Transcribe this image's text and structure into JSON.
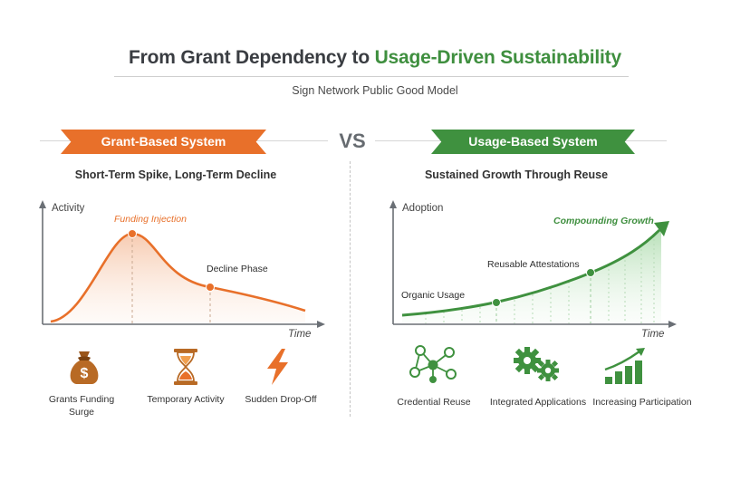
{
  "header": {
    "title_prefix": "From Grant Dependency to ",
    "title_accent": "Usage-Driven Sustainability",
    "subtitle": "Sign Network Public Good Model",
    "vs_label": "VS"
  },
  "left_panel": {
    "banner": "Grant-Based System",
    "heading": "Short-Term Spike, Long-Term Decline",
    "y_axis_label": "Activity",
    "x_axis_label": "Time",
    "annotations": {
      "peak": "Funding Injection",
      "decline": "Decline Phase"
    },
    "icons": [
      {
        "icon": "money-bag-icon",
        "label": "Grants Funding Surge"
      },
      {
        "icon": "hourglass-icon",
        "label": "Temporary Activity"
      },
      {
        "icon": "lightning-icon",
        "label": "Sudden Drop-Off"
      }
    ]
  },
  "right_panel": {
    "banner": "Usage-Based System",
    "heading": "Sustained Growth Through Reuse",
    "y_axis_label": "Adoption",
    "x_axis_label": "Time",
    "annotations": {
      "start": "Organic Usage",
      "middle": "Reusable Attestations",
      "end": "Compounding Growth"
    },
    "icons": [
      {
        "icon": "network-nodes-icon",
        "label": "Credential Reuse"
      },
      {
        "icon": "gears-icon",
        "label": "Integrated Applications"
      },
      {
        "icon": "bar-growth-icon",
        "label": "Increasing Participation"
      }
    ]
  },
  "colors": {
    "orange": "#e8702a",
    "green": "#3f913f",
    "brown": "#b86a25"
  }
}
